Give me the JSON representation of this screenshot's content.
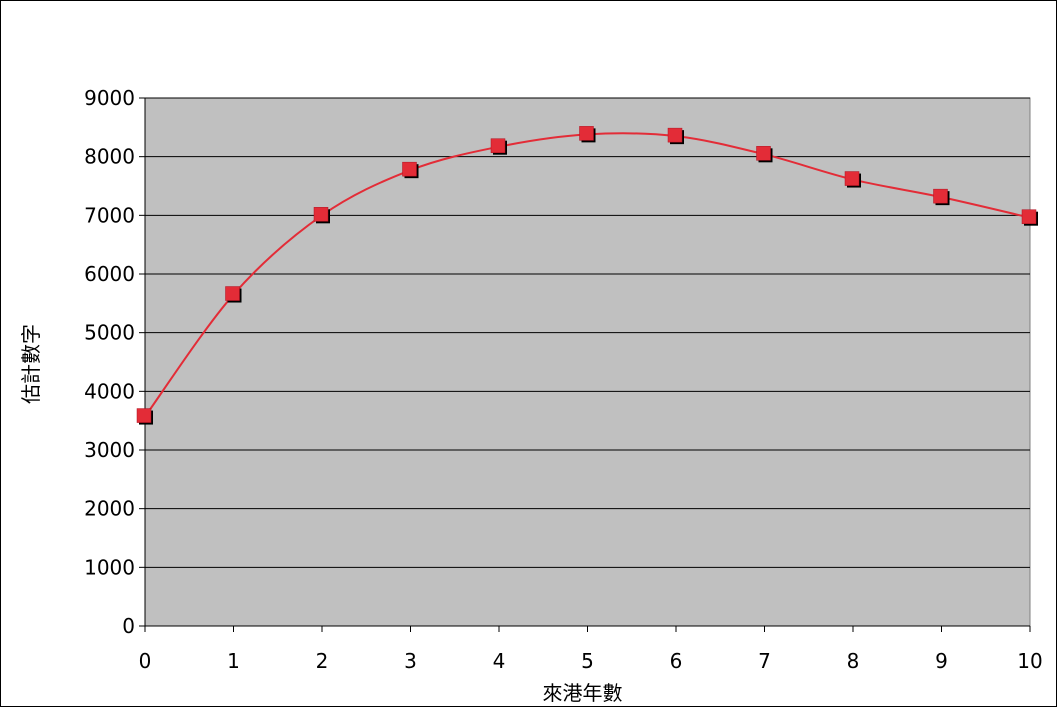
{
  "chart_data": {
    "type": "line",
    "xlabel": "來港年數",
    "ylabel": "估計數字",
    "xlim": [
      0,
      10
    ],
    "ylim": [
      0,
      9000
    ],
    "x_ticks": [
      "0",
      "1",
      "2",
      "3",
      "4",
      "5",
      "6",
      "7",
      "8",
      "9",
      "10"
    ],
    "y_ticks": [
      "0",
      "1000",
      "2000",
      "3000",
      "4000",
      "5000",
      "6000",
      "7000",
      "8000",
      "9000"
    ],
    "grid": true,
    "legend": "none",
    "series": [
      {
        "x": [
          0,
          1,
          2,
          3,
          4,
          5,
          6,
          7,
          8,
          9,
          10
        ],
        "values": [
          3570,
          5650,
          7000,
          7770,
          8170,
          8380,
          8350,
          8040,
          7610,
          7310,
          6960
        ]
      }
    ],
    "colors": {
      "plot_background": "#c0c0c0",
      "line": "#e32c37",
      "marker": "#e32c37",
      "marker_shadow": "#000000",
      "grid": "#000000"
    }
  }
}
